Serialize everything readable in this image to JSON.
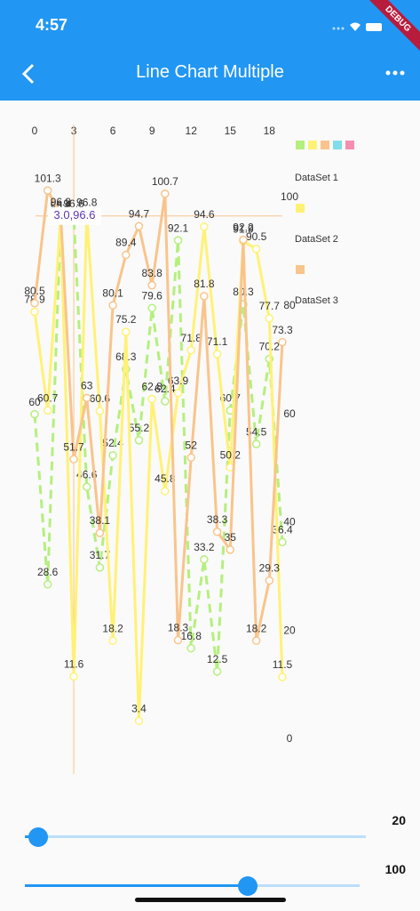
{
  "status_bar": {
    "time": "4:57"
  },
  "ribbon": "DEBUG",
  "app_bar": {
    "title": "Line Chart Multiple"
  },
  "highlight": "3.0,96.6",
  "chart_data": {
    "type": "line",
    "x": [
      0,
      1,
      2,
      3,
      4,
      5,
      6,
      7,
      8,
      9,
      10,
      11,
      12,
      13,
      14,
      15,
      16,
      17,
      18,
      19
    ],
    "xlim": [
      0,
      19
    ],
    "xticks": [
      0,
      3,
      6,
      9,
      12,
      15,
      18
    ],
    "ylim": [
      0,
      100
    ],
    "yticks": [
      0,
      20,
      40,
      60,
      80,
      100
    ],
    "series": [
      {
        "name": "DataSet 1",
        "color": "#b5ef7e",
        "dashed": true,
        "values": [
          60.0,
          28.6,
          96.2,
          96.6,
          46.6,
          31.7,
          52.4,
          68.3,
          55.2,
          79.6,
          62.4,
          92.1,
          16.8,
          33.2,
          12.5,
          60.7,
          80.3,
          54.5,
          70.2,
          36.4
        ]
      },
      {
        "name": "DataSet 2",
        "color": "#fff176",
        "values": [
          78.9,
          60.7,
          96.4,
          11.6,
          96.8,
          60.6,
          18.2,
          75.2,
          3.4,
          62.8,
          45.8,
          63.9,
          71.8,
          94.6,
          71.1,
          50.2,
          91.9,
          90.5,
          77.7,
          11.5
        ]
      },
      {
        "name": "DataSet 3",
        "color": "#f9c48c",
        "values": [
          80.5,
          101.3,
          96.9,
          51.7,
          63.0,
          38.1,
          80.1,
          89.4,
          94.7,
          83.8,
          100.7,
          18.3,
          52.0,
          81.8,
          38.3,
          35.0,
          92.2,
          18.2,
          29.3,
          73.3
        ]
      }
    ],
    "legend_colors": [
      "#b5ef7e",
      "#fff176",
      "#f9c48c",
      "#80deea",
      "#f48fb1"
    ]
  },
  "sliders": [
    "20",
    "100"
  ]
}
